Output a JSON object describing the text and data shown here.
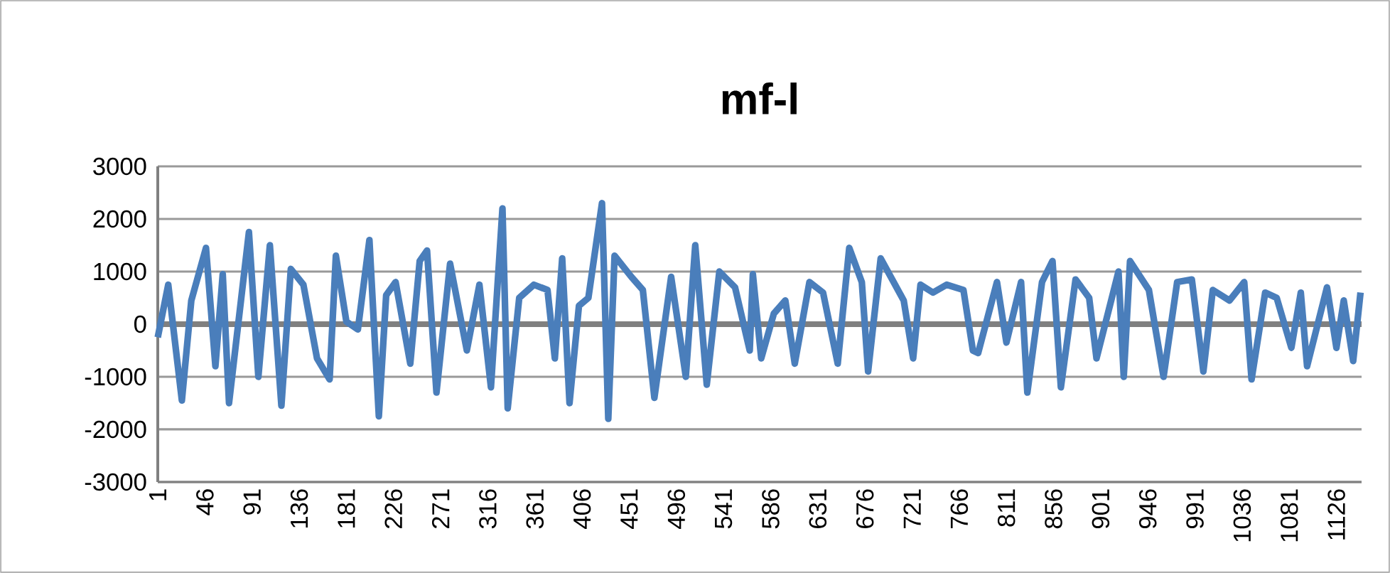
{
  "chart_data": {
    "type": "line",
    "title": "mf-l",
    "series": [
      {
        "color": "#4a7ebb",
        "x": [
          1,
          11,
          24,
          33,
          47,
          56,
          63,
          69,
          88,
          97,
          108,
          119,
          128,
          140,
          153,
          165,
          171,
          181,
          192,
          203,
          212,
          219,
          228,
          242,
          251,
          258,
          267,
          280,
          296,
          308,
          319,
          330,
          335,
          346,
          360,
          373,
          380,
          387,
          394,
          403,
          412,
          425,
          431,
          437,
          453,
          464,
          475,
          491,
          505,
          514,
          525,
          537,
          552,
          566,
          569,
          577,
          589,
          600,
          609,
          623,
          636,
          650,
          661,
          673,
          679,
          691,
          713,
          722,
          729,
          741,
          754,
          770,
          779,
          784,
          802,
          811,
          825,
          831,
          845,
          855,
          863,
          877,
          890,
          897,
          918,
          923,
          929,
          947,
          961,
          974,
          988,
          999,
          1008,
          1024,
          1038,
          1045,
          1058,
          1069,
          1083,
          1092,
          1098,
          1117,
          1126,
          1133,
          1142,
          1149
        ],
        "values": [
          -250,
          750,
          -1450,
          450,
          1450,
          -800,
          950,
          -1500,
          1750,
          -1000,
          1500,
          -1550,
          1050,
          750,
          -650,
          -1050,
          1300,
          50,
          -100,
          1600,
          -1750,
          550,
          800,
          -750,
          1200,
          1400,
          -1300,
          1150,
          -500,
          750,
          -1200,
          2200,
          -1600,
          500,
          750,
          650,
          -650,
          1250,
          -1500,
          350,
          500,
          2300,
          -1800,
          1300,
          900,
          650,
          -1400,
          900,
          -1000,
          1500,
          -1150,
          1000,
          700,
          -500,
          950,
          -650,
          200,
          450,
          -750,
          800,
          600,
          -750,
          1450,
          800,
          -900,
          1250,
          450,
          -650,
          750,
          600,
          750,
          650,
          -500,
          -550,
          800,
          -350,
          800,
          -1300,
          800,
          1200,
          -1200,
          850,
          500,
          -650,
          1000,
          -1000,
          1200,
          650,
          -1000,
          800,
          850,
          -900,
          650,
          450,
          800,
          -1050,
          600,
          500,
          -450,
          600,
          -800,
          700,
          -450,
          450,
          -700,
          600
        ]
      }
    ],
    "xlim": [
      1,
      1150
    ],
    "xticks": [
      1,
      46,
      91,
      136,
      181,
      226,
      271,
      316,
      361,
      406,
      451,
      496,
      541,
      586,
      631,
      676,
      721,
      766,
      811,
      856,
      901,
      946,
      991,
      1036,
      1081,
      1126
    ],
    "ylim": [
      -3000,
      3000
    ],
    "yticks": [
      -3000,
      -2000,
      -1000,
      0,
      1000,
      2000,
      3000
    ],
    "grid": "y",
    "marker": "none",
    "line_style": "solid"
  }
}
